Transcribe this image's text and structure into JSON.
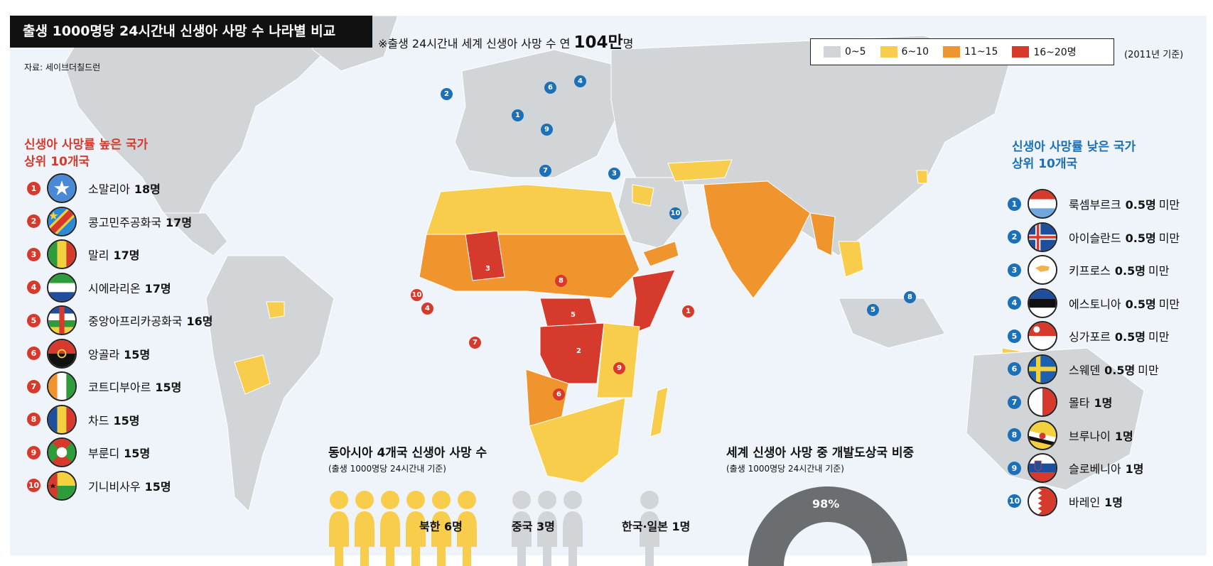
{
  "title": "출생 1000명당 24시간내 신생아 사망 수 나라별 비교",
  "subtitle": {
    "prefix": "※출생 24시간내 세계 신생아 사망 수 연",
    "value": "104만",
    "suffix": "명"
  },
  "source": "자료: 세이브더칠드런",
  "legend": {
    "items": [
      {
        "label": "0~5",
        "color": "#d2d5d8"
      },
      {
        "label": "6~10",
        "color": "#f8cd4c"
      },
      {
        "label": "11~15",
        "color": "#f0952e"
      },
      {
        "label": "16~20명",
        "color": "#d63a2c"
      }
    ],
    "note": "(2011년 기준)"
  },
  "high": {
    "heading_line1": "신생아 사망률 높은 국가",
    "heading_line2": "상위 10개국",
    "items": [
      {
        "num": "1",
        "name": "소말리아",
        "value": "18명"
      },
      {
        "num": "2",
        "name": "콩고민주공화국",
        "value": "17명"
      },
      {
        "num": "3",
        "name": "말리",
        "value": "17명"
      },
      {
        "num": "4",
        "name": "시에라리온",
        "value": "17명"
      },
      {
        "num": "5",
        "name": "중앙아프리카공화국",
        "value": "16명"
      },
      {
        "num": "6",
        "name": "앙골라",
        "value": "15명"
      },
      {
        "num": "7",
        "name": "코트디부아르",
        "value": "15명"
      },
      {
        "num": "8",
        "name": "차드",
        "value": "15명"
      },
      {
        "num": "9",
        "name": "부룬디",
        "value": "15명"
      },
      {
        "num": "10",
        "name": "기니비사우",
        "value": "15명"
      }
    ]
  },
  "low": {
    "heading_line1": "신생아 사망률 낮은 국가",
    "heading_line2": "상위 10개국",
    "items": [
      {
        "num": "1",
        "name": "룩셈부르크",
        "value": "0.5명",
        "suffix": "미만"
      },
      {
        "num": "2",
        "name": "아이슬란드",
        "value": "0.5명",
        "suffix": "미만"
      },
      {
        "num": "3",
        "name": "키프로스",
        "value": "0.5명",
        "suffix": "미만"
      },
      {
        "num": "4",
        "name": "에스토니아",
        "value": "0.5명",
        "suffix": "미만"
      },
      {
        "num": "5",
        "name": "싱가포르",
        "value": "0.5명",
        "suffix": "미만"
      },
      {
        "num": "6",
        "name": "스웨덴",
        "value": "0.5명",
        "suffix": "미만"
      },
      {
        "num": "7",
        "name": "몰타",
        "value": "1명",
        "suffix": ""
      },
      {
        "num": "8",
        "name": "브루나이",
        "value": "1명",
        "suffix": ""
      },
      {
        "num": "9",
        "name": "슬로베니아",
        "value": "1명",
        "suffix": ""
      },
      {
        "num": "10",
        "name": "바레인",
        "value": "1명",
        "suffix": ""
      }
    ]
  },
  "east_asia": {
    "title": "동아시아 4개국 신생아 사망 수",
    "subtitle": "(출생 1000명당 24시간내 기준)",
    "groups": [
      {
        "label": "북한 6명",
        "count": 6,
        "color": "#f8cd4c"
      },
      {
        "label": "중국 3명",
        "count": 3,
        "color": "#d2d5d8"
      },
      {
        "label": "한국·일본 1명",
        "count": 1,
        "color": "#d2d5d8"
      }
    ]
  },
  "developing": {
    "title": "세계 신생아 사망 중 개발도상국 비중",
    "subtitle": "(출생 1000명당 24시간내 기준)",
    "percent_label": "98%",
    "percent": 98
  },
  "map_markers_high": [
    "1",
    "2",
    "3",
    "4",
    "5",
    "6",
    "7",
    "8",
    "9",
    "10"
  ],
  "map_markers_low": [
    "1",
    "2",
    "3",
    "4",
    "5",
    "6",
    "7",
    "8",
    "9",
    "10"
  ]
}
